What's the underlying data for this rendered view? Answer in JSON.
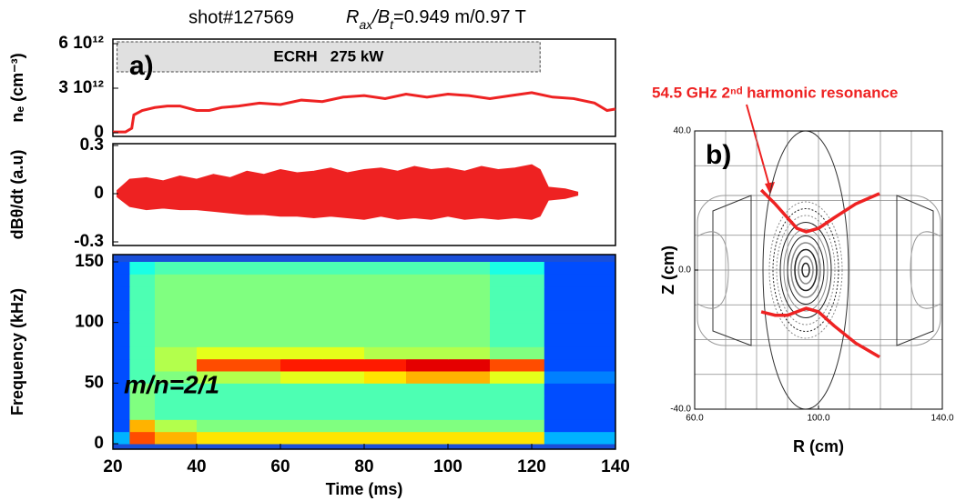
{
  "chart_data": [
    {
      "type": "line",
      "title": "shot#127569",
      "subtitle_parts": [
        "R",
        "ax",
        "/B",
        "t",
        "=0.949 m/0.97 T"
      ],
      "panel_label": "a)",
      "ylabel": "nₑ (cm⁻³)",
      "ecrh_label": "ECRH   275 kW",
      "ecrh_span": [
        21,
        122
      ],
      "xlim": [
        20,
        140
      ],
      "ylim": [
        0,
        6000000000000.0
      ],
      "yticks": [
        {
          "value": 6000000000000.0,
          "label": "6 10¹²"
        },
        {
          "value": 3000000000000.0,
          "label": "3 10¹²"
        },
        0
      ],
      "x": [
        20,
        23,
        24.5,
        25,
        27,
        30,
        33,
        36,
        40,
        43,
        46,
        50,
        55,
        60,
        65,
        70,
        75,
        80,
        85,
        90,
        95,
        100,
        105,
        110,
        115,
        120,
        125,
        130,
        135,
        138,
        140
      ],
      "series": [
        {
          "color": "#ee2222",
          "values": [
            50000000000.0,
            50000000000.0,
            300000000000.0,
            1200000000000.0,
            1500000000000.0,
            1700000000000.0,
            1800000000000.0,
            1800000000000.0,
            1500000000000.0,
            1500000000000.0,
            1700000000000.0,
            1800000000000.0,
            2000000000000.0,
            1900000000000.0,
            2200000000000.0,
            2100000000000.0,
            2400000000000.0,
            2500000000000.0,
            2300000000000.0,
            2600000000000.0,
            2400000000000.0,
            2600000000000.0,
            2500000000000.0,
            2300000000000.0,
            2500000000000.0,
            2700000000000.0,
            2400000000000.0,
            2300000000000.0,
            2000000000000.0,
            1500000000000.0,
            1600000000000.0
          ]
        }
      ]
    },
    {
      "type": "band",
      "ylabel": "dBθ/dt (a.u)",
      "xlim": [
        20,
        140
      ],
      "ylim": [
        -0.3,
        0.3
      ],
      "yticks": [
        0.3,
        0,
        -0.3
      ],
      "x": [
        21,
        24,
        28,
        32,
        36,
        40,
        44,
        48,
        52,
        56,
        60,
        64,
        68,
        72,
        76,
        80,
        84,
        88,
        92,
        96,
        100,
        104,
        108,
        112,
        116,
        120,
        122,
        124,
        128,
        131
      ],
      "series": [
        {
          "color": "#ee2222",
          "high": [
            0.02,
            0.09,
            0.1,
            0.08,
            0.11,
            0.09,
            0.12,
            0.1,
            0.14,
            0.12,
            0.15,
            0.13,
            0.14,
            0.16,
            0.13,
            0.15,
            0.16,
            0.14,
            0.17,
            0.15,
            0.16,
            0.14,
            0.17,
            0.15,
            0.16,
            0.18,
            0.15,
            0.04,
            0.03,
            0.01
          ],
          "low": [
            -0.02,
            -0.08,
            -0.1,
            -0.09,
            -0.1,
            -0.1,
            -0.11,
            -0.12,
            -0.13,
            -0.13,
            -0.14,
            -0.14,
            -0.15,
            -0.14,
            -0.15,
            -0.16,
            -0.14,
            -0.16,
            -0.15,
            -0.16,
            -0.14,
            -0.16,
            -0.15,
            -0.16,
            -0.15,
            -0.16,
            -0.14,
            -0.04,
            -0.03,
            -0.01
          ]
        }
      ]
    },
    {
      "type": "heatmap",
      "ylabel": "Frequency (kHz)",
      "xlabel": "Time (ms)",
      "annotation": "m/n=2/1",
      "xlim": [
        20,
        140
      ],
      "ylim": [
        0,
        150
      ],
      "xticks": [
        20,
        40,
        60,
        80,
        100,
        120,
        140
      ],
      "yticks": [
        0,
        50,
        100,
        150
      ],
      "x_edges": [
        20,
        24,
        30,
        40,
        50,
        60,
        70,
        80,
        90,
        100,
        110,
        123,
        140
      ],
      "y_edges": [
        0,
        10,
        20,
        30,
        40,
        50,
        60,
        70,
        80,
        90,
        100,
        110,
        120,
        130,
        140,
        150
      ],
      "zlim": [
        0,
        1
      ],
      "z": [
        [
          0.3,
          0.8,
          0.7,
          0.65,
          0.65,
          0.65,
          0.65,
          0.65,
          0.65,
          0.65,
          0.65,
          0.3
        ],
        [
          0.2,
          0.7,
          0.55,
          0.5,
          0.5,
          0.5,
          0.5,
          0.5,
          0.5,
          0.5,
          0.5,
          0.2
        ],
        [
          0.2,
          0.5,
          0.45,
          0.45,
          0.45,
          0.45,
          0.45,
          0.45,
          0.45,
          0.45,
          0.45,
          0.2
        ],
        [
          0.2,
          0.5,
          0.45,
          0.45,
          0.45,
          0.45,
          0.45,
          0.45,
          0.45,
          0.45,
          0.45,
          0.2
        ],
        [
          0.2,
          0.5,
          0.45,
          0.45,
          0.45,
          0.45,
          0.45,
          0.45,
          0.45,
          0.45,
          0.45,
          0.2
        ],
        [
          0.2,
          0.45,
          0.5,
          0.55,
          0.55,
          0.6,
          0.6,
          0.65,
          0.7,
          0.7,
          0.6,
          0.25
        ],
        [
          0.2,
          0.45,
          0.55,
          0.8,
          0.8,
          0.85,
          0.85,
          0.85,
          0.9,
          0.9,
          0.8,
          0.2
        ],
        [
          0.2,
          0.45,
          0.55,
          0.6,
          0.6,
          0.6,
          0.6,
          0.55,
          0.55,
          0.55,
          0.5,
          0.2
        ],
        [
          0.2,
          0.45,
          0.5,
          0.5,
          0.5,
          0.5,
          0.5,
          0.5,
          0.5,
          0.5,
          0.45,
          0.2
        ],
        [
          0.2,
          0.45,
          0.5,
          0.5,
          0.5,
          0.5,
          0.5,
          0.5,
          0.5,
          0.5,
          0.45,
          0.2
        ],
        [
          0.2,
          0.45,
          0.5,
          0.5,
          0.5,
          0.5,
          0.5,
          0.5,
          0.5,
          0.5,
          0.45,
          0.2
        ],
        [
          0.2,
          0.45,
          0.5,
          0.5,
          0.5,
          0.5,
          0.5,
          0.5,
          0.5,
          0.5,
          0.45,
          0.2
        ],
        [
          0.2,
          0.45,
          0.5,
          0.5,
          0.5,
          0.5,
          0.5,
          0.5,
          0.5,
          0.5,
          0.45,
          0.2
        ],
        [
          0.2,
          0.45,
          0.5,
          0.5,
          0.5,
          0.5,
          0.5,
          0.5,
          0.5,
          0.5,
          0.45,
          0.2
        ],
        [
          0.2,
          0.4,
          0.45,
          0.45,
          0.45,
          0.45,
          0.45,
          0.45,
          0.45,
          0.45,
          0.4,
          0.2
        ]
      ]
    },
    {
      "type": "flux",
      "panel_label": "b)",
      "xlabel": "R (cm)",
      "ylabel": "Z (cm)",
      "annotation": "54.5 GHz 2ⁿᵈ harmonic resonance",
      "xlim": [
        60,
        140
      ],
      "ylim": [
        -40,
        40
      ],
      "xticks": [
        {
          "value": 60,
          "label": "60.0"
        },
        {
          "value": 100,
          "label": "100.0"
        },
        {
          "value": 140,
          "label": "140.0"
        }
      ],
      "yticks": [
        {
          "value": 40,
          "label": "40.0"
        },
        {
          "value": 0,
          "label": "0.0"
        },
        {
          "value": -40,
          "label": "-40.0"
        }
      ],
      "xgrid": [
        60,
        70,
        80,
        90,
        100,
        110,
        120,
        130,
        140
      ],
      "ygrid": [
        -40,
        -30,
        -20,
        -10,
        0,
        10,
        20,
        30,
        40
      ],
      "series": [
        {
          "color": "#ee2222",
          "x": [
            81.5,
            86,
            90,
            93,
            96,
            100,
            105,
            112,
            119.7
          ],
          "values": [
            23,
            19,
            15,
            12,
            11,
            12,
            15,
            19,
            22
          ]
        },
        {
          "color": "#ee2222",
          "x": [
            81.5,
            86,
            90,
            93,
            96,
            100,
            105,
            112,
            119.7
          ],
          "values": [
            -12,
            -13,
            -13,
            -12,
            -11,
            -12,
            -16,
            -21,
            -25
          ]
        }
      ]
    }
  ]
}
